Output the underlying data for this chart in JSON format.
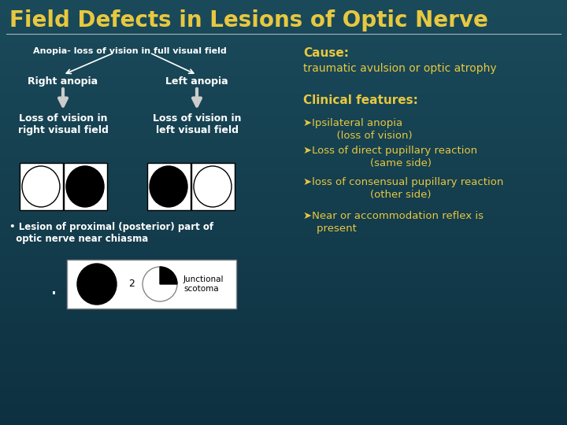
{
  "title": "Field Defects in Lesions of Optic Nerve",
  "title_color": "#E8C840",
  "title_fontsize": 20,
  "bg_color_top": "#1a4a5a",
  "bg_color_bottom": "#0d3040",
  "left_panel": {
    "anopia_label": "Anopia- loss of vision in full visual field",
    "right_label": "Right anopia",
    "left_label": "Left anopia",
    "loss_right": "Loss of vision in\nright visual field",
    "loss_left": "Loss of vision in\nleft visual field",
    "bullet_text": "• Lesion of proximal (posterior) part of\n  optic nerve near chiasma",
    "junctional_label": "Junctional\nscotoma"
  },
  "right_panel": {
    "cause_label": "Cause:",
    "cause_text": "traumatic avulsion or optic atrophy",
    "clinical_label": "Clinical features:",
    "features": [
      [
        "➤Ipsilateral anopia",
        "          (loss of vision)"
      ],
      [
        "➤Loss of direct pupillary reaction",
        "                    (same side)"
      ],
      [
        "➤loss of consensual pupillary reaction",
        "                    (other side)"
      ],
      [
        "➤Near or accommodation reflex is",
        "    present"
      ]
    ]
  },
  "text_white": "#FFFFFF",
  "text_yellow": "#E8C840",
  "arrow_color": "#CCCCCC"
}
